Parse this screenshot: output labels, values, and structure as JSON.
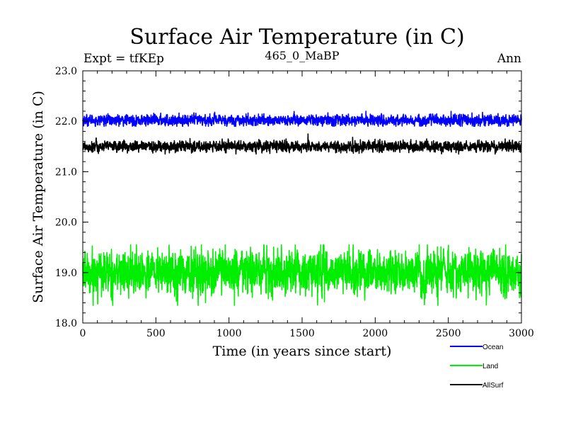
{
  "chart_data": {
    "type": "line",
    "title": "Surface Air Temperature (in C)",
    "subtitle_left": "Expt = tfKEp",
    "subtitle_center": "465_0_MaBP",
    "subtitle_right": "Ann",
    "xlabel": "Time (in years since start)",
    "ylabel": "Surface Air Temperature (in C)",
    "xlim": [
      0,
      3000
    ],
    "ylim": [
      18.0,
      23.0
    ],
    "x_ticks": [
      "0",
      "500",
      "1000",
      "1500",
      "2000",
      "2500",
      "3000"
    ],
    "y_ticks": [
      "18.0",
      "19.0",
      "20.0",
      "21.0",
      "22.0",
      "23.0"
    ],
    "grid": false,
    "legend_position": "bottom-right, below plot",
    "series": [
      {
        "name": "Ocean",
        "color": "#0000ff",
        "mean": 22.02,
        "noise": 0.05,
        "range": [
          21.9,
          22.2
        ]
      },
      {
        "name": "Land",
        "color": "#00ee00",
        "mean": 19.0,
        "noise": 0.2,
        "range": [
          18.35,
          19.55
        ]
      },
      {
        "name": "AllSurf",
        "color": "#000000",
        "mean": 21.5,
        "noise": 0.05,
        "range": [
          21.35,
          21.75
        ]
      }
    ],
    "n_points": 3000
  }
}
